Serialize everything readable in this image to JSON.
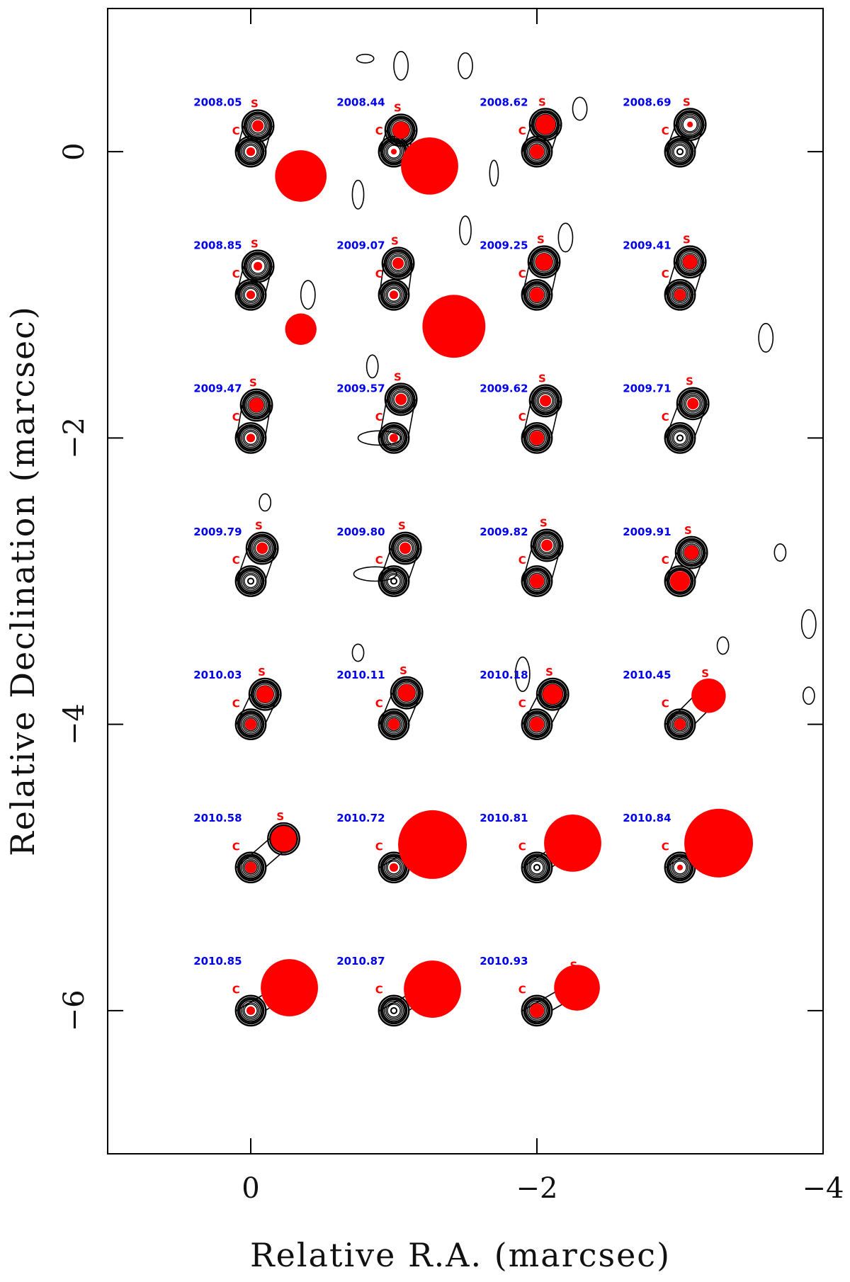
{
  "chart_data": {
    "type": "scatter",
    "title": "",
    "xlabel": "Relative R.A. (marcsec)",
    "ylabel": "Relative Declination (marcsec)",
    "xlim": [
      1.0,
      -4.0
    ],
    "ylim": [
      -7.0,
      1.0
    ],
    "x_ticks": [
      0,
      -2,
      -4
    ],
    "x_tick_labels": [
      "0",
      "−2",
      "−4"
    ],
    "y_ticks": [
      0,
      -2,
      -4,
      -6
    ],
    "y_tick_labels": [
      "0",
      "−2",
      "−4",
      "−6"
    ],
    "grid": false,
    "row_spacing_mas": 1.0,
    "column_spacing_mas": 1.0,
    "core_label": "C",
    "secondary_label": "S",
    "colors": {
      "component": "#ff0000",
      "epoch_label": "#0000ee",
      "contour": "#000000",
      "axis": "#000000"
    },
    "epochs": [
      {
        "epoch": "2008.05",
        "row": 0,
        "col": 0,
        "core_r": 0.03,
        "s_dx": -0.05,
        "s_dy": 0.18,
        "s_r": 0.04,
        "extra_dx": -0.35,
        "extra_dy": -0.17,
        "extra_r": 0.18
      },
      {
        "epoch": "2008.44",
        "row": 0,
        "col": 1,
        "core_r": 0.02,
        "s_dx": -0.05,
        "s_dy": 0.15,
        "s_r": 0.06,
        "extra_dx": -0.25,
        "extra_dy": -0.1,
        "extra_r": 0.2
      },
      {
        "epoch": "2008.62",
        "row": 0,
        "col": 2,
        "core_r": 0.05,
        "s_dx": -0.06,
        "s_dy": 0.19,
        "s_r": 0.07
      },
      {
        "epoch": "2008.69",
        "row": 0,
        "col": 3,
        "core_r": 0.0,
        "s_dx": -0.07,
        "s_dy": 0.19,
        "s_r": 0.02
      },
      {
        "epoch": "2008.85",
        "row": 1,
        "col": 0,
        "core_r": 0.03,
        "s_dx": -0.05,
        "s_dy": 0.2,
        "s_r": 0.03,
        "extra_dx": -0.35,
        "extra_dy": -0.24,
        "extra_r": 0.11
      },
      {
        "epoch": "2009.07",
        "row": 1,
        "col": 1,
        "core_r": 0.03,
        "s_dx": -0.03,
        "s_dy": 0.22,
        "s_r": 0.04,
        "extra_dx": -0.42,
        "extra_dy": -0.22,
        "extra_r": 0.22
      },
      {
        "epoch": "2009.25",
        "row": 1,
        "col": 2,
        "core_r": 0.05,
        "s_dx": -0.05,
        "s_dy": 0.23,
        "s_r": 0.06
      },
      {
        "epoch": "2009.41",
        "row": 1,
        "col": 3,
        "core_r": 0.04,
        "s_dx": -0.07,
        "s_dy": 0.23,
        "s_r": 0.05
      },
      {
        "epoch": "2009.47",
        "row": 2,
        "col": 0,
        "core_r": 0.03,
        "s_dx": -0.04,
        "s_dy": 0.23,
        "s_r": 0.05
      },
      {
        "epoch": "2009.57",
        "row": 2,
        "col": 1,
        "core_r": 0.03,
        "s_dx": -0.05,
        "s_dy": 0.27,
        "s_r": 0.04
      },
      {
        "epoch": "2009.62",
        "row": 2,
        "col": 2,
        "core_r": 0.05,
        "s_dx": -0.06,
        "s_dy": 0.26,
        "s_r": 0.04
      },
      {
        "epoch": "2009.71",
        "row": 2,
        "col": 3,
        "core_r": 0.0,
        "s_dx": -0.09,
        "s_dy": 0.24,
        "s_r": 0.04
      },
      {
        "epoch": "2009.79",
        "row": 3,
        "col": 0,
        "core_r": 0.0,
        "s_dx": -0.08,
        "s_dy": 0.23,
        "s_r": 0.04
      },
      {
        "epoch": "2009.80",
        "row": 3,
        "col": 1,
        "core_r": 0.0,
        "s_dx": -0.08,
        "s_dy": 0.23,
        "s_r": 0.04
      },
      {
        "epoch": "2009.82",
        "row": 3,
        "col": 2,
        "core_r": 0.05,
        "s_dx": -0.07,
        "s_dy": 0.25,
        "s_r": 0.04
      },
      {
        "epoch": "2009.91",
        "row": 3,
        "col": 3,
        "core_r": 0.07,
        "s_dx": -0.08,
        "s_dy": 0.2,
        "s_r": 0.05
      },
      {
        "epoch": "2010.03",
        "row": 4,
        "col": 0,
        "core_r": 0.04,
        "s_dx": -0.1,
        "s_dy": 0.21,
        "s_r": 0.06
      },
      {
        "epoch": "2010.11",
        "row": 4,
        "col": 1,
        "core_r": 0.04,
        "s_dx": -0.09,
        "s_dy": 0.22,
        "s_r": 0.06
      },
      {
        "epoch": "2010.18",
        "row": 4,
        "col": 2,
        "core_r": 0.05,
        "s_dx": -0.11,
        "s_dy": 0.21,
        "s_r": 0.07
      },
      {
        "epoch": "2010.45",
        "row": 4,
        "col": 3,
        "core_r": 0.04,
        "s_dx": -0.2,
        "s_dy": 0.2,
        "s_r": 0.12
      },
      {
        "epoch": "2010.58",
        "row": 5,
        "col": 0,
        "core_r": 0.04,
        "s_dx": -0.23,
        "s_dy": 0.2,
        "s_r": 0.09
      },
      {
        "epoch": "2010.72",
        "row": 5,
        "col": 1,
        "core_r": 0.03,
        "s_dx": -0.27,
        "s_dy": 0.16,
        "s_r": 0.24
      },
      {
        "epoch": "2010.81",
        "row": 5,
        "col": 2,
        "core_r": 0.0,
        "s_dx": -0.25,
        "s_dy": 0.17,
        "s_r": 0.2
      },
      {
        "epoch": "2010.84",
        "row": 5,
        "col": 3,
        "core_r": 0.02,
        "s_dx": -0.27,
        "s_dy": 0.17,
        "s_r": 0.24
      },
      {
        "epoch": "2010.85",
        "row": 6,
        "col": 0,
        "core_r": 0.03,
        "s_dx": -0.27,
        "s_dy": 0.16,
        "s_r": 0.2
      },
      {
        "epoch": "2010.87",
        "row": 6,
        "col": 1,
        "core_r": 0.0,
        "s_dx": -0.27,
        "s_dy": 0.15,
        "s_r": 0.2
      },
      {
        "epoch": "2010.93",
        "row": 6,
        "col": 2,
        "core_r": 0.05,
        "s_dx": -0.28,
        "s_dy": 0.16,
        "s_r": 0.16
      }
    ]
  }
}
